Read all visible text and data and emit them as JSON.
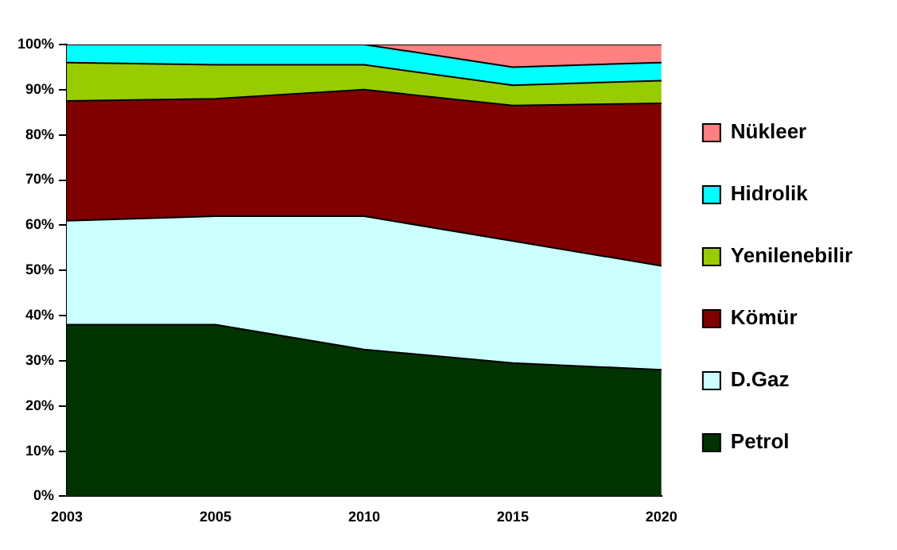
{
  "chart_data": {
    "type": "area",
    "stacked": true,
    "categories": [
      "2003",
      "2005",
      "2010",
      "2015",
      "2020"
    ],
    "series": [
      {
        "name": "Petrol",
        "color": "#003300",
        "values": [
          38,
          38,
          32.5,
          29.5,
          28
        ]
      },
      {
        "name": "D.Gaz",
        "color": "#ccffff",
        "values": [
          23,
          24,
          29.5,
          27,
          23
        ]
      },
      {
        "name": "Kömür",
        "color": "#800000",
        "values": [
          26.5,
          26,
          28,
          30,
          36
        ]
      },
      {
        "name": "Yenilenebilir",
        "color": "#99cc00",
        "values": [
          8.5,
          7.5,
          5.5,
          4.5,
          5
        ]
      },
      {
        "name": "Hidrolik",
        "color": "#00ffff",
        "values": [
          4,
          4.5,
          4.5,
          4,
          4
        ]
      },
      {
        "name": "Nükleer",
        "color": "#ff8080",
        "values": [
          0,
          0,
          0,
          5,
          4
        ]
      }
    ],
    "ylim": [
      0,
      100
    ],
    "yticks": [
      {
        "value": 0,
        "label": "0%"
      },
      {
        "value": 10,
        "label": "10%"
      },
      {
        "value": 20,
        "label": "20%"
      },
      {
        "value": 30,
        "label": "30%"
      },
      {
        "value": 40,
        "label": "40%"
      },
      {
        "value": 50,
        "label": "50%"
      },
      {
        "value": 60,
        "label": "60%"
      },
      {
        "value": 70,
        "label": "70%"
      },
      {
        "value": 80,
        "label": "80%"
      },
      {
        "value": 90,
        "label": "90%"
      },
      {
        "value": 100,
        "label": "100%"
      }
    ],
    "grid": false,
    "legend": "right",
    "marker": "none"
  }
}
